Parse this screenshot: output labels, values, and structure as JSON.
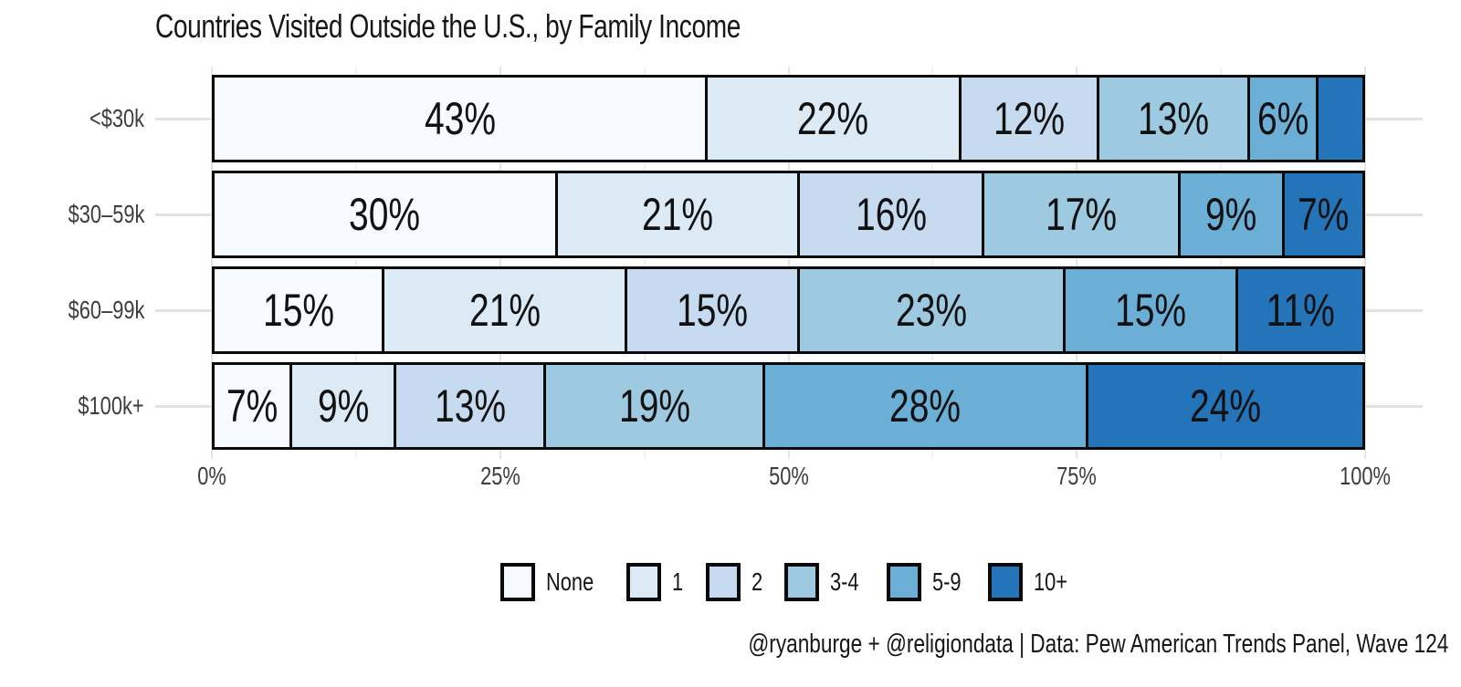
{
  "chart_data": {
    "type": "bar",
    "stacked": true,
    "orientation": "horizontal",
    "title": "Countries Visited Outside the U.S., by Family Income",
    "caption": "@ryanburge + @religiondata | Data: Pew American Trends Panel, Wave 124",
    "categories": [
      "<$30k",
      "$30–59k",
      "$60–99k",
      "$100k+"
    ],
    "series": [
      {
        "name": "None",
        "color": "#f7fbff",
        "values": [
          43,
          30,
          15,
          7
        ]
      },
      {
        "name": "1",
        "color": "#dceaf6",
        "values": [
          22,
          21,
          21,
          9
        ]
      },
      {
        "name": "2",
        "color": "#c6dbef",
        "values": [
          12,
          16,
          15,
          13
        ]
      },
      {
        "name": "3-4",
        "color": "#9ecae1",
        "values": [
          13,
          17,
          23,
          19
        ]
      },
      {
        "name": "5-9",
        "color": "#6baed6",
        "values": [
          6,
          9,
          15,
          28
        ]
      },
      {
        "name": "10+",
        "color": "#2474b9",
        "values": [
          4,
          7,
          11,
          24
        ]
      }
    ],
    "data_labels": [
      [
        "43%",
        "22%",
        "12%",
        "13%",
        "6%",
        ""
      ],
      [
        "30%",
        "21%",
        "16%",
        "17%",
        "9%",
        "7%"
      ],
      [
        "15%",
        "21%",
        "15%",
        "23%",
        "15%",
        "11%"
      ],
      [
        "7%",
        "9%",
        "13%",
        "19%",
        "28%",
        "24%"
      ]
    ],
    "x_axis": {
      "range": [
        0,
        100
      ],
      "tick_values": [
        0,
        25,
        50,
        75,
        100
      ],
      "tick_labels": [
        "0%",
        "25%",
        "50%",
        "75%",
        "100%"
      ],
      "minor_tick_values": [
        12.5,
        37.5,
        62.5,
        87.5
      ],
      "grid": true
    },
    "legend": {
      "position": "bottom",
      "items": [
        "None",
        "1",
        "2",
        "3-4",
        "5-9",
        "10+"
      ]
    },
    "colors": {
      "bar_border": "#0a0a0a",
      "axis_text": "#3d3d3d",
      "grid_major": "#e4e4e4",
      "grid_minor": "#f1f1f1",
      "background": "#ffffff"
    }
  }
}
